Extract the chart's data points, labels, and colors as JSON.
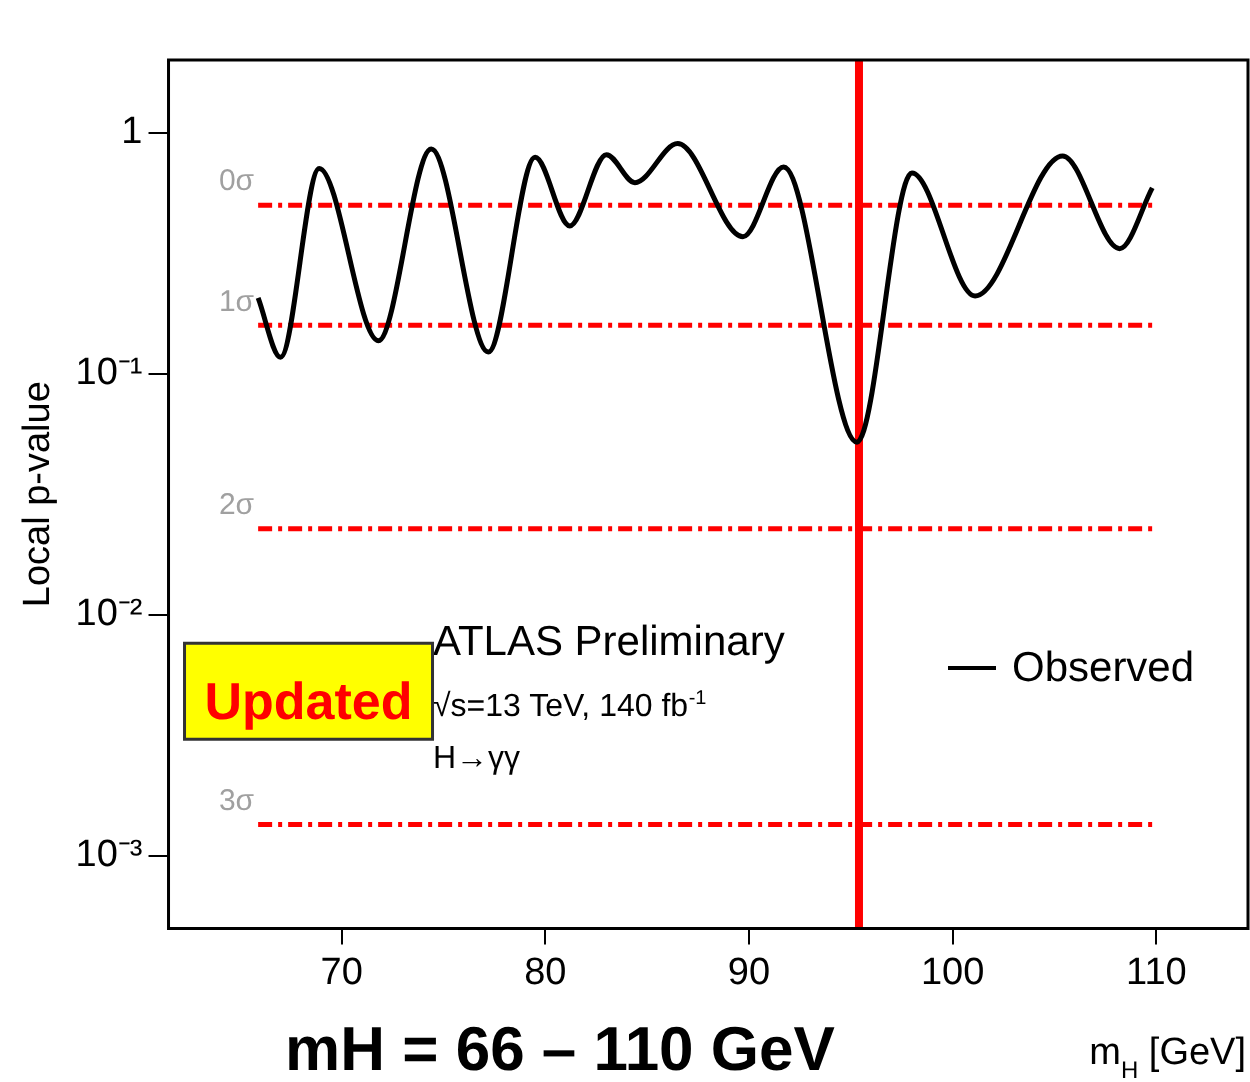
{
  "chart_data": {
    "type": "line",
    "xlabel": "m$_{H}$ [GeV]",
    "ylabel": "Local p-value",
    "annotations": [
      "ATLAS Preliminary",
      "√s=13 TeV, 140 fb$^{-1}$",
      "H→γγ",
      "mH = 66 – 110 GeV",
      "Updated"
    ],
    "series": [
      {
        "name": "Observed",
        "color": "#000000",
        "x": [
          65.9,
          67.0,
          68.9,
          71.8,
          74.4,
          77.2,
          79.5,
          81.2,
          83.0,
          84.4,
          86.5,
          89.7,
          91.7,
          95.3,
          98.0,
          101.1,
          105.4,
          108.2,
          109.8
        ],
        "values": [
          0.206,
          0.117,
          0.71,
          0.137,
          0.855,
          0.123,
          0.79,
          0.41,
          0.81,
          0.62,
          0.9,
          0.37,
          0.72,
          0.052,
          0.68,
          0.21,
          0.8,
          0.33,
          0.59
        ]
      }
    ],
    "xlim": [
      61.5,
      114.5
    ],
    "xticks": [
      70,
      80,
      90,
      100,
      110
    ],
    "ylim": [
      0.0005,
      2
    ],
    "yticks": [
      {
        "value": 0.001,
        "label": "10⁻³"
      },
      {
        "value": 0.01,
        "label": "10⁻²"
      },
      {
        "value": 0.1,
        "label": "10⁻¹"
      },
      1
    ],
    "log": "y",
    "grid": false,
    "legend": "right",
    "marker": "none",
    "line_style": "solid",
    "ref_lines": [
      {
        "axis": "y",
        "value": 0.5,
        "label": "0σ",
        "color": "#ff0000",
        "line_style": "dashed"
      },
      {
        "axis": "y",
        "value": 0.1587,
        "label": "1σ",
        "color": "#ff0000",
        "line_style": "dashed"
      },
      {
        "axis": "y",
        "value": 0.02275,
        "label": "2σ",
        "color": "#ff0000",
        "line_style": "dashed"
      },
      {
        "axis": "y",
        "value": 0.00135,
        "label": "3σ",
        "color": "#ff0000",
        "line_style": "dashed"
      },
      {
        "axis": "x",
        "value": 95.4,
        "color": "#ff0000",
        "line_style": "solid"
      }
    ]
  }
}
